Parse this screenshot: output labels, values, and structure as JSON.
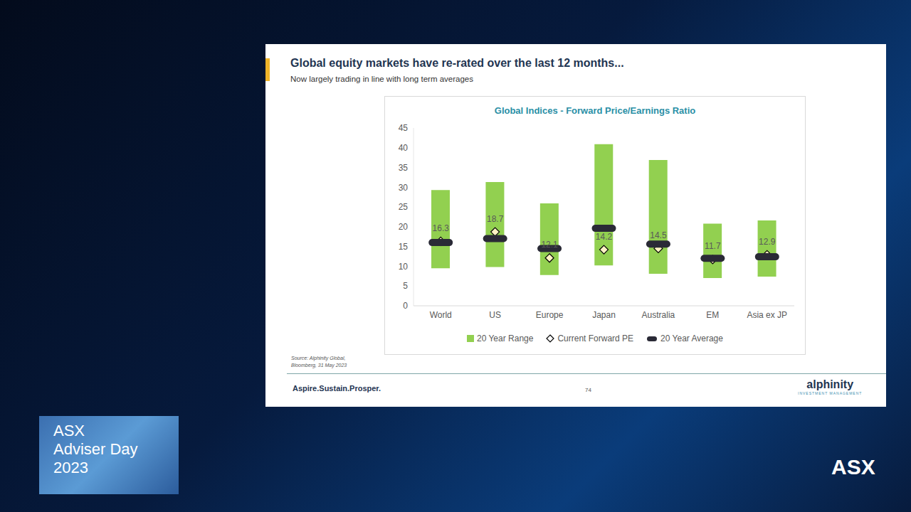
{
  "slide": {
    "title": "Global equity markets have re-rated over the last 12 months...",
    "subtitle": "Now largely trading in line with long term averages",
    "source": [
      "Source: Alphinity Global,",
      "Bloomberg, 31 May 2023"
    ],
    "footer_left": "Aspire.Sustain.Prosper.",
    "page": "74",
    "brand": "alphinity",
    "brand_sub": "INVESTMENT MANAGEMENT"
  },
  "event": {
    "title_lines": [
      "ASX",
      "Adviser Day",
      "2023"
    ],
    "logo": "ASX"
  },
  "chart_data": {
    "type": "bar",
    "title": "Global Indices - Forward Price/Earnings Ratio",
    "categories": [
      "World",
      "US",
      "Europe",
      "Japan",
      "Australia",
      "EM",
      "Asia ex JP"
    ],
    "ylim": [
      0,
      45
    ],
    "yticks": [
      0,
      5,
      10,
      15,
      20,
      25,
      30,
      35,
      40,
      45
    ],
    "grid": false,
    "legend": "bottom",
    "series": [
      {
        "name": "20 Year Range",
        "type": "range",
        "color": "#92d050",
        "values": [
          [
            9.5,
            29.3
          ],
          [
            9.8,
            31.3
          ],
          [
            7.8,
            25.9
          ],
          [
            10.2,
            40.9
          ],
          [
            8.1,
            36.9
          ],
          [
            7.0,
            20.8
          ],
          [
            7.4,
            21.6
          ]
        ]
      },
      {
        "name": "Current Forward PE",
        "type": "scatter",
        "marker": "diamond",
        "color": "#000000",
        "data_labels": true,
        "values": [
          16.3,
          18.7,
          12.1,
          14.2,
          14.5,
          11.7,
          12.9
        ]
      },
      {
        "name": "20 Year Average",
        "type": "scatter",
        "marker": "dash",
        "color": "#2a2a36",
        "values": [
          16.0,
          17.0,
          14.5,
          19.6,
          15.6,
          12.0,
          12.4
        ]
      }
    ]
  }
}
